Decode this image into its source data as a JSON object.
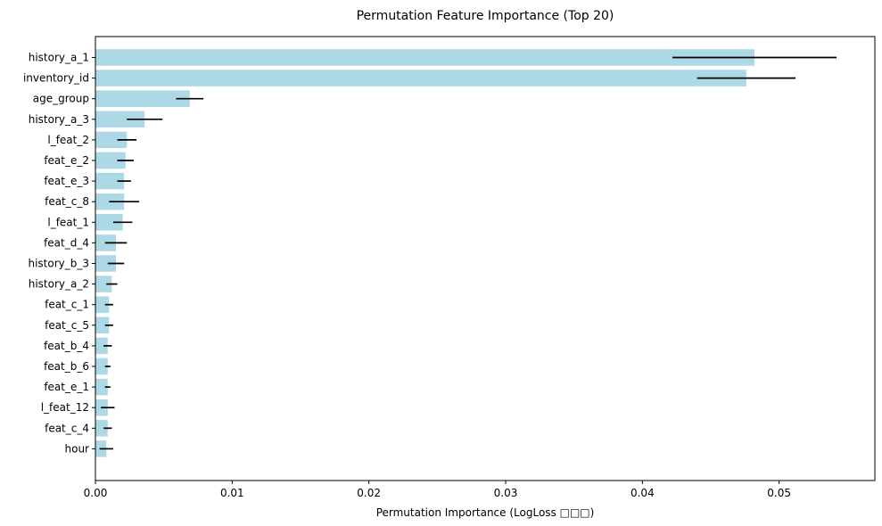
{
  "chart_data": {
    "type": "bar",
    "orientation": "horizontal",
    "title": "Permutation Feature Importance (Top 20)",
    "xlabel": "Permutation Importance (LogLoss □□□)",
    "ylabel": "",
    "xlim": [
      0,
      0.057
    ],
    "xticks": [
      0.0,
      0.01,
      0.02,
      0.03,
      0.04,
      0.05
    ],
    "xtick_labels": [
      "0.00",
      "0.01",
      "0.02",
      "0.03",
      "0.04",
      "0.05"
    ],
    "grid": false,
    "legend": "none",
    "bar_color": "#add8e6",
    "error_bar_color": "#000000",
    "categories": [
      "history_a_1",
      "inventory_id",
      "age_group",
      "history_a_3",
      "l_feat_2",
      "feat_e_2",
      "feat_e_3",
      "feat_c_8",
      "l_feat_1",
      "feat_d_4",
      "history_b_3",
      "history_a_2",
      "feat_c_1",
      "feat_c_5",
      "feat_b_4",
      "feat_b_6",
      "feat_e_1",
      "l_feat_12",
      "feat_c_4",
      "hour"
    ],
    "values": [
      0.0482,
      0.0476,
      0.0069,
      0.0036,
      0.0023,
      0.0022,
      0.0021,
      0.0021,
      0.002,
      0.0015,
      0.0015,
      0.0012,
      0.001,
      0.001,
      0.0009,
      0.0009,
      0.0009,
      0.0009,
      0.0009,
      0.0008
    ],
    "errors": [
      0.006,
      0.0036,
      0.001,
      0.0013,
      0.0007,
      0.0006,
      0.0005,
      0.0011,
      0.0007,
      0.0008,
      0.0006,
      0.0004,
      0.0003,
      0.0003,
      0.0003,
      0.0002,
      0.0002,
      0.0005,
      0.0003,
      0.0005
    ]
  }
}
